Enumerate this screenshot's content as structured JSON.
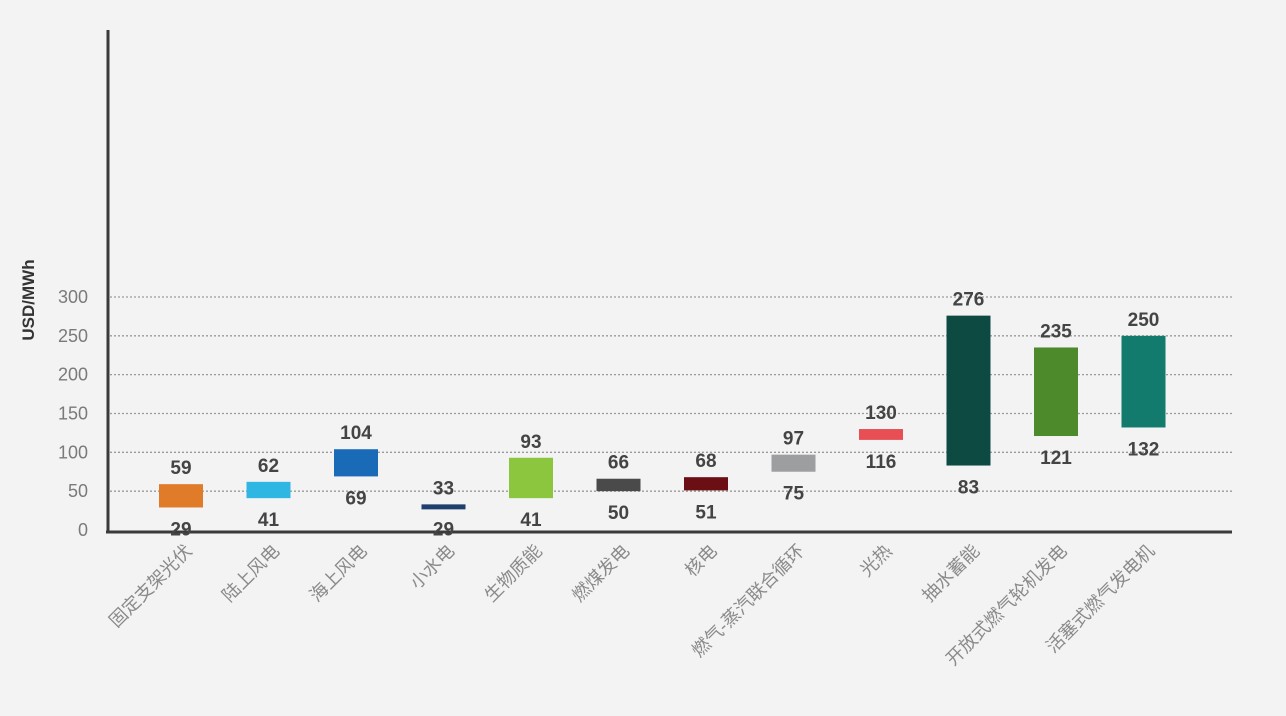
{
  "chart_data": {
    "type": "floating-bar",
    "ylabel": "USD/MWh",
    "ylim": [
      0,
      300
    ],
    "yticks": [
      0,
      50,
      100,
      150,
      200,
      250,
      300
    ],
    "grid": true,
    "categories": [
      "固定支架光伏",
      "陆上风电",
      "海上风电",
      "小水电",
      "生物质能",
      "燃煤发电",
      "核电",
      "燃气-蒸汽联合循环",
      "光热",
      "抽水蓄能",
      "开放式燃气轮机发电",
      "活塞式燃气发电机"
    ],
    "low": [
      29,
      41,
      69,
      29,
      41,
      50,
      51,
      75,
      116,
      83,
      121,
      132
    ],
    "high": [
      59,
      62,
      104,
      33,
      93,
      66,
      68,
      97,
      130,
      276,
      235,
      250
    ],
    "colors": [
      "#e07b2a",
      "#2fb6e3",
      "#1a6bb7",
      "#1f3f6e",
      "#8cc63f",
      "#4a4a4a",
      "#6b0f14",
      "#9c9ea0",
      "#e84f55",
      "#0c4a42",
      "#4c8a2c",
      "#137a6e"
    ]
  }
}
